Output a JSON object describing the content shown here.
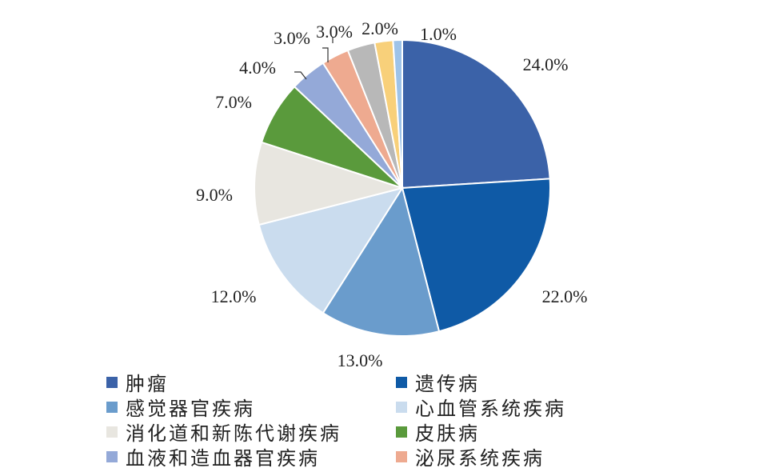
{
  "chart_data": {
    "type": "pie",
    "categories": [
      "肿瘤",
      "遗传病",
      "感觉器官疾病",
      "心血管系统疾病",
      "消化道和新陈代谢疾病",
      "皮肤病",
      "血液和造血器官疾病",
      "泌尿系统疾病",
      "",
      "",
      ""
    ],
    "values": [
      24.0,
      22.0,
      13.0,
      12.0,
      9.0,
      7.0,
      4.0,
      3.0,
      3.0,
      2.0,
      1.0
    ],
    "data_labels": [
      "24.0%",
      "22.0%",
      "13.0%",
      "12.0%",
      "9.0%",
      "7.0%",
      "4.0%",
      "3.0%",
      "3.0%",
      "2.0%",
      "1.0%"
    ],
    "colors": [
      "#3b62a8",
      "#0f5aa6",
      "#6a9ccc",
      "#cadcee",
      "#e8e6e0",
      "#5a9a3c",
      "#94a9d8",
      "#eeaa90",
      "#b8b8b8",
      "#f8d07a",
      "#9ec3e8"
    ],
    "legend_placement": "bottom",
    "title": "",
    "xlabel": "",
    "ylabel": ""
  },
  "legend": {
    "items": [
      {
        "label": "肿瘤",
        "color": "#3b62a8"
      },
      {
        "label": "遗传病",
        "color": "#0f5aa6"
      },
      {
        "label": "感觉器官疾病",
        "color": "#6a9ccc"
      },
      {
        "label": "心血管系统疾病",
        "color": "#cadcee"
      },
      {
        "label": "消化道和新陈代谢疾病",
        "color": "#e8e6e0"
      },
      {
        "label": "皮肤病",
        "color": "#5a9a3c"
      },
      {
        "label": "血液和造血器官疾病",
        "color": "#94a9d8"
      },
      {
        "label": "泌尿系统疾病",
        "color": "#eeaa90"
      }
    ]
  }
}
